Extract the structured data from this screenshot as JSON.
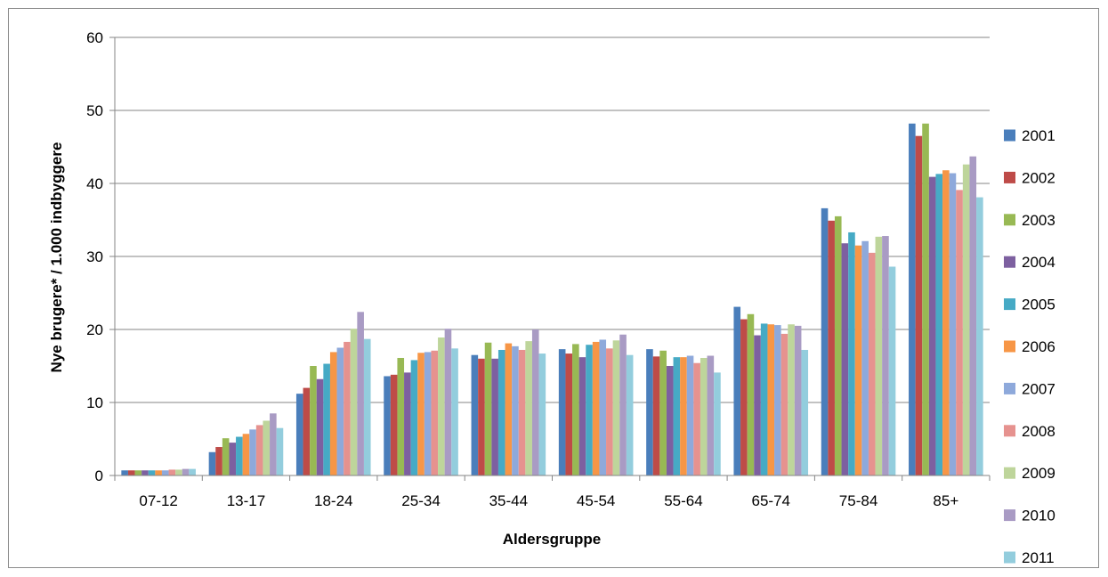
{
  "chart_data": {
    "type": "bar",
    "title": "",
    "xlabel": "Aldersgruppe",
    "ylabel": "Nye brugere* / 1.000 indbyggere",
    "ylim": [
      0,
      60
    ],
    "yticks": [
      0,
      10,
      20,
      30,
      40,
      50,
      60
    ],
    "grid": "horizontal",
    "legend_position": "right",
    "categories": [
      "07-12",
      "13-17",
      "18-24",
      "25-34",
      "35-44",
      "45-54",
      "55-64",
      "65-74",
      "75-84",
      "85+"
    ],
    "series": [
      {
        "name": "2001",
        "color": "#4a7ebb",
        "values": [
          0.7,
          3.2,
          11.2,
          13.6,
          16.5,
          17.3,
          17.3,
          23.1,
          36.6,
          48.2
        ]
      },
      {
        "name": "2002",
        "color": "#be4b48",
        "values": [
          0.7,
          3.9,
          12.0,
          13.8,
          16.0,
          16.7,
          16.3,
          21.4,
          34.9,
          46.5
        ]
      },
      {
        "name": "2003",
        "color": "#98b954",
        "values": [
          0.7,
          5.1,
          15.0,
          16.1,
          18.2,
          18.0,
          17.1,
          22.1,
          35.5,
          48.2
        ]
      },
      {
        "name": "2004",
        "color": "#7d60a0",
        "values": [
          0.7,
          4.5,
          13.2,
          14.1,
          16.0,
          16.2,
          15.0,
          19.2,
          31.8,
          40.9
        ]
      },
      {
        "name": "2005",
        "color": "#46aac5",
        "values": [
          0.7,
          5.3,
          15.3,
          15.8,
          17.2,
          17.9,
          16.2,
          20.8,
          33.3,
          41.3
        ]
      },
      {
        "name": "2006",
        "color": "#f79646",
        "values": [
          0.7,
          5.7,
          16.9,
          16.8,
          18.1,
          18.3,
          16.2,
          20.7,
          31.5,
          41.8
        ]
      },
      {
        "name": "2007",
        "color": "#8ea9db",
        "values": [
          0.7,
          6.3,
          17.5,
          16.9,
          17.7,
          18.6,
          16.4,
          20.6,
          32.1,
          41.4
        ]
      },
      {
        "name": "2008",
        "color": "#e6928f",
        "values": [
          0.8,
          6.9,
          18.3,
          17.1,
          17.2,
          17.4,
          15.4,
          19.4,
          30.5,
          39.1
        ]
      },
      {
        "name": "2009",
        "color": "#bed59b",
        "values": [
          0.8,
          7.5,
          20.1,
          18.9,
          18.4,
          18.5,
          16.1,
          20.7,
          32.7,
          42.6
        ]
      },
      {
        "name": "2010",
        "color": "#a99bc4",
        "values": [
          0.9,
          8.5,
          22.4,
          20.1,
          20.0,
          19.3,
          16.4,
          20.5,
          32.8,
          43.7
        ]
      },
      {
        "name": "2011",
        "color": "#93cddd",
        "values": [
          0.9,
          6.5,
          18.7,
          17.4,
          16.7,
          16.5,
          14.1,
          17.2,
          28.6,
          38.1
        ]
      }
    ]
  }
}
